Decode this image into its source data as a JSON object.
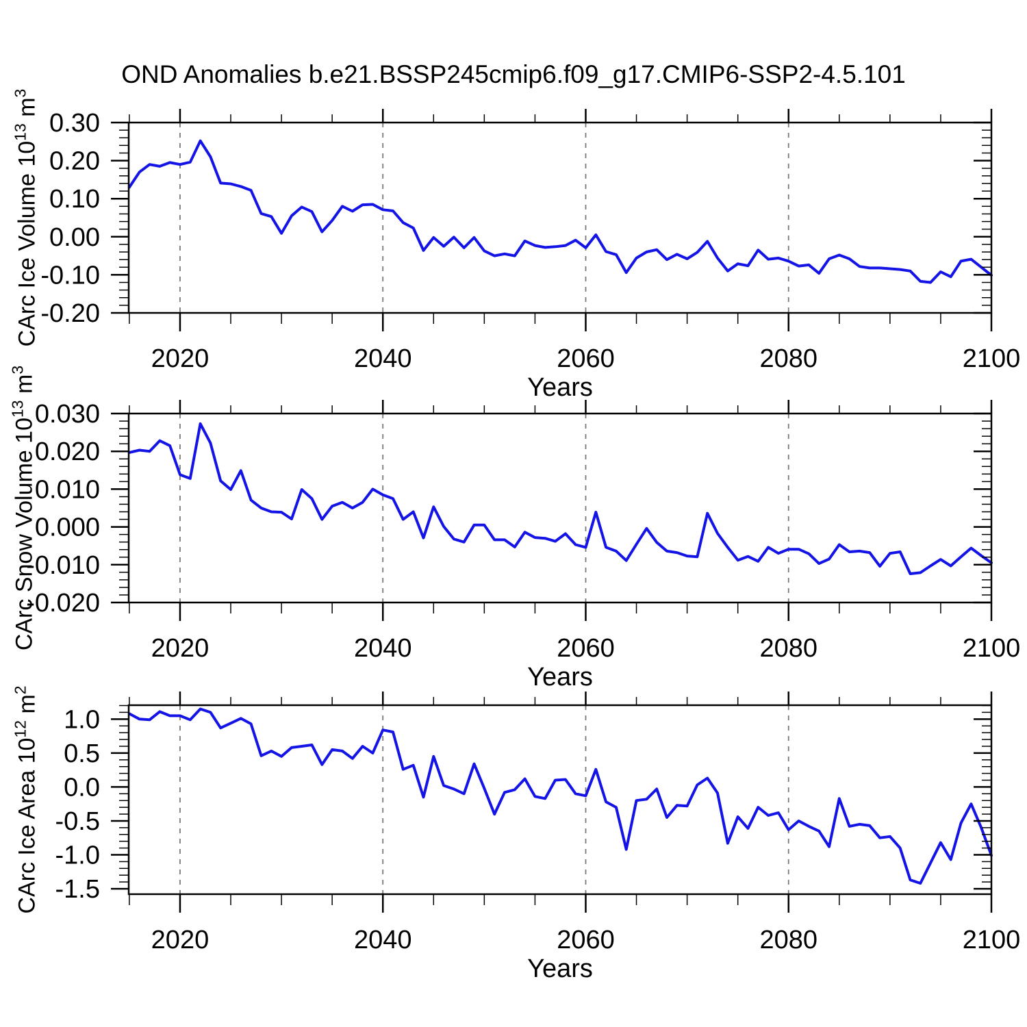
{
  "title": "OND Anomalies b.e21.BSSP245cmip6.f09_g17.CMIP6-SSP2-4.5.101",
  "xlabel": "Years",
  "line_color": "#1414e6",
  "grid_color": "#787878",
  "chart_data": [
    {
      "type": "line",
      "series_name": "CArc Ice Volume anomaly",
      "ylabel": "CArc Ice Volume 10^13 m^3",
      "ylabel_parts": {
        "base1": "CArc Ice Volume 10",
        "sup1": "13",
        "base2": " m",
        "sup2": "3"
      },
      "x_start": 2015,
      "x_step": 1,
      "xlim": [
        2014.94,
        2100
      ],
      "ylim": [
        -0.2,
        0.3
      ],
      "xticks": [
        2020,
        2040,
        2060,
        2080,
        2100
      ],
      "xticklabels": [
        "2020",
        "2040",
        "2060",
        "2080",
        "2100"
      ],
      "xminor_step": 5,
      "grid_x": [
        2020,
        2040,
        2060,
        2080
      ],
      "yticks": [
        0.3,
        0.2,
        0.1,
        0.0,
        -0.1,
        -0.2
      ],
      "yticklabels": [
        "0.30",
        "0.20",
        "0.10",
        "0.00",
        "-0.10",
        "-0.20"
      ],
      "yminor_step": 0.02,
      "values": [
        0.13,
        0.17,
        0.19,
        0.185,
        0.195,
        0.19,
        0.196,
        0.252,
        0.21,
        0.141,
        0.139,
        0.132,
        0.122,
        0.061,
        0.053,
        0.009,
        0.055,
        0.078,
        0.066,
        0.013,
        0.043,
        0.08,
        0.067,
        0.084,
        0.085,
        0.071,
        0.068,
        0.037,
        0.023,
        -0.036,
        -0.002,
        -0.025,
        -0.001,
        -0.029,
        -0.002,
        -0.037,
        -0.05,
        -0.045,
        -0.05,
        -0.011,
        -0.023,
        -0.028,
        -0.026,
        -0.023,
        -0.009,
        -0.029,
        0.005,
        -0.039,
        -0.047,
        -0.094,
        -0.056,
        -0.04,
        -0.034,
        -0.06,
        -0.046,
        -0.058,
        -0.041,
        -0.012,
        -0.056,
        -0.09,
        -0.071,
        -0.076,
        -0.035,
        -0.059,
        -0.056,
        -0.064,
        -0.077,
        -0.074,
        -0.096,
        -0.058,
        -0.048,
        -0.058,
        -0.078,
        -0.082,
        -0.082,
        -0.084,
        -0.086,
        -0.09,
        -0.117,
        -0.12,
        -0.092,
        -0.105,
        -0.064,
        -0.059,
        -0.08,
        -0.101
      ]
    },
    {
      "type": "line",
      "series_name": "CArc Snow Volume anomaly",
      "ylabel": "CArc Snow Volume 10^13 m^3",
      "ylabel_parts": {
        "base1": "CArc Snow Volume 10",
        "sup1": "13",
        "base2": " m",
        "sup2": "3"
      },
      "x_start": 2015,
      "x_step": 1,
      "xlim": [
        2014.94,
        2100
      ],
      "ylim": [
        -0.02,
        0.03
      ],
      "xticks": [
        2020,
        2040,
        2060,
        2080,
        2100
      ],
      "xticklabels": [
        "2020",
        "2040",
        "2060",
        "2080",
        "2100"
      ],
      "xminor_step": 5,
      "grid_x": [
        2020,
        2040,
        2060,
        2080
      ],
      "yticks": [
        0.03,
        0.02,
        0.01,
        0.0,
        -0.01,
        -0.02
      ],
      "yticklabels": [
        "0.030",
        "0.020",
        "0.010",
        "0.000",
        "-0.010",
        "-0.020"
      ],
      "yminor_step": 0.002,
      "values": [
        0.0197,
        0.0203,
        0.02,
        0.0228,
        0.0215,
        0.0138,
        0.0128,
        0.0273,
        0.0222,
        0.0122,
        0.0099,
        0.0149,
        0.0071,
        0.005,
        0.004,
        0.0039,
        0.0021,
        0.0099,
        0.0075,
        0.002,
        0.0055,
        0.0065,
        0.005,
        0.0065,
        0.01,
        0.0085,
        0.0075,
        0.002,
        0.004,
        -0.0029,
        0.0053,
        0.0001,
        -0.0032,
        -0.004,
        0.0005,
        0.0005,
        -0.0034,
        -0.0034,
        -0.0053,
        -0.0014,
        -0.0028,
        -0.003,
        -0.0038,
        -0.0018,
        -0.0047,
        -0.0054,
        0.0039,
        -0.0054,
        -0.0064,
        -0.0089,
        -0.0046,
        -0.0004,
        -0.0041,
        -0.0064,
        -0.0068,
        -0.0077,
        -0.0079,
        0.0036,
        -0.0017,
        -0.0054,
        -0.0088,
        -0.0078,
        -0.0091,
        -0.0054,
        -0.007,
        -0.0059,
        -0.0059,
        -0.0071,
        -0.0097,
        -0.0085,
        -0.0047,
        -0.0066,
        -0.0064,
        -0.0068,
        -0.0104,
        -0.007,
        -0.0066,
        -0.0124,
        -0.0121,
        -0.0103,
        -0.0086,
        -0.0103,
        -0.0079,
        -0.0056,
        -0.0076,
        -0.0095
      ]
    },
    {
      "type": "line",
      "series_name": "CArc Ice Area anomaly",
      "ylabel": "CArc Ice Area 10^12 m^2",
      "ylabel_parts": {
        "base1": "CArc Ice Area 10",
        "sup1": "12",
        "base2": " m",
        "sup2": "2"
      },
      "x_start": 2015,
      "x_step": 1,
      "xlim": [
        2014.94,
        2100
      ],
      "ylim": [
        -1.58,
        1.205
      ],
      "xticks": [
        2020,
        2040,
        2060,
        2080,
        2100
      ],
      "xticklabels": [
        "2020",
        "2040",
        "2060",
        "2080",
        "2100"
      ],
      "xminor_step": 5,
      "grid_x": [
        2020,
        2040,
        2060,
        2080
      ],
      "yticks": [
        1.0,
        0.5,
        0.0,
        -0.5,
        -1.0,
        -1.5
      ],
      "yticklabels": [
        "1.0",
        "0.5",
        "0.0",
        "-0.5",
        "-1.0",
        "-1.5"
      ],
      "yminor_step": 0.1,
      "values": [
        1.08,
        1.0,
        0.99,
        1.11,
        1.05,
        1.05,
        0.99,
        1.15,
        1.1,
        0.87,
        0.94,
        1.01,
        0.93,
        0.46,
        0.53,
        0.45,
        0.58,
        0.6,
        0.62,
        0.33,
        0.55,
        0.53,
        0.42,
        0.6,
        0.5,
        0.84,
        0.81,
        0.26,
        0.32,
        -0.15,
        0.45,
        0.02,
        -0.03,
        -0.1,
        0.34,
        -0.02,
        -0.4,
        -0.08,
        -0.04,
        0.12,
        -0.14,
        -0.17,
        0.1,
        0.11,
        -0.1,
        -0.13,
        0.26,
        -0.22,
        -0.3,
        -0.92,
        -0.2,
        -0.18,
        -0.03,
        -0.45,
        -0.27,
        -0.28,
        0.03,
        0.13,
        -0.09,
        -0.83,
        -0.44,
        -0.61,
        -0.3,
        -0.42,
        -0.38,
        -0.63,
        -0.5,
        -0.58,
        -0.65,
        -0.88,
        -0.17,
        -0.58,
        -0.55,
        -0.57,
        -0.75,
        -0.73,
        -0.9,
        -1.37,
        -1.42,
        -1.12,
        -0.82,
        -1.07,
        -0.53,
        -0.25,
        -0.6,
        -1.01
      ]
    }
  ]
}
